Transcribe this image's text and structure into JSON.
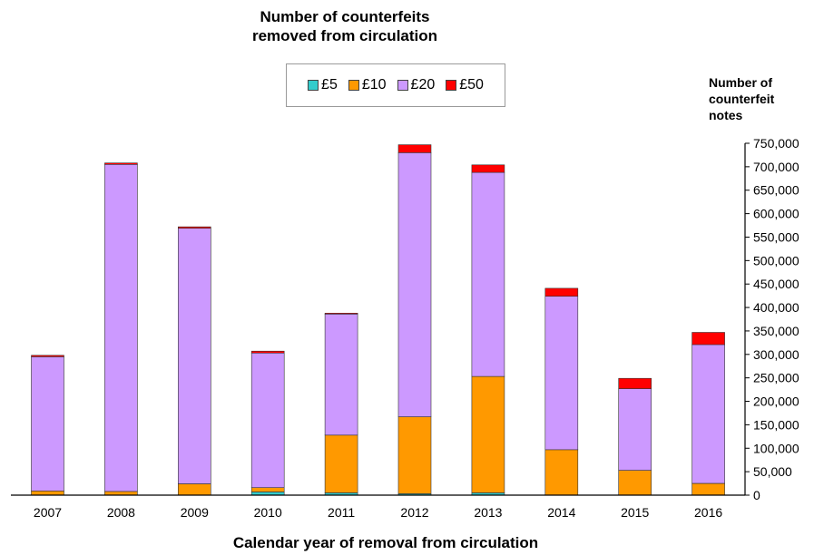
{
  "chart_data": {
    "type": "bar",
    "stacked": true,
    "title_line1": "Number of counterfeits",
    "title_line2": "removed from circulation",
    "xlabel": "Calendar year of removal from circulation",
    "ylabel_line1": "Number of",
    "ylabel_line2": "counterfeit",
    "ylabel_line3": "notes",
    "ylim": [
      0,
      750000
    ],
    "y_ticks": [
      0,
      50000,
      100000,
      150000,
      200000,
      250000,
      300000,
      350000,
      400000,
      450000,
      500000,
      550000,
      600000,
      650000,
      700000,
      750000
    ],
    "y_tick_labels": [
      "0",
      "50,000",
      "100,000",
      "150,000",
      "200,000",
      "250,000",
      "300,000",
      "350,000",
      "400,000",
      "450,000",
      "500,000",
      "550,000",
      "600,000",
      "650,000",
      "700,000",
      "750,000"
    ],
    "y_axis_side": "right",
    "grid": false,
    "legend_placement": "top-center",
    "categories": [
      "2007",
      "2008",
      "2009",
      "2010",
      "2011",
      "2012",
      "2013",
      "2014",
      "2015",
      "2016"
    ],
    "series": [
      {
        "name": "£5",
        "color": "#33cccc",
        "values": [
          0,
          0,
          0,
          7000,
          5000,
          3000,
          5000,
          0,
          0,
          0
        ]
      },
      {
        "name": "£10",
        "color": "#ff9900",
        "values": [
          9000,
          8000,
          24000,
          9000,
          123000,
          164000,
          248000,
          97000,
          53000,
          25000
        ]
      },
      {
        "name": "£20",
        "color": "#cc99ff",
        "values": [
          286000,
          697000,
          545000,
          287000,
          258000,
          563000,
          435000,
          327000,
          174000,
          296000
        ]
      },
      {
        "name": "£50",
        "color": "#ff0000",
        "values": [
          3000,
          3000,
          3000,
          4000,
          2000,
          17000,
          16000,
          17000,
          22000,
          26000
        ]
      }
    ]
  }
}
